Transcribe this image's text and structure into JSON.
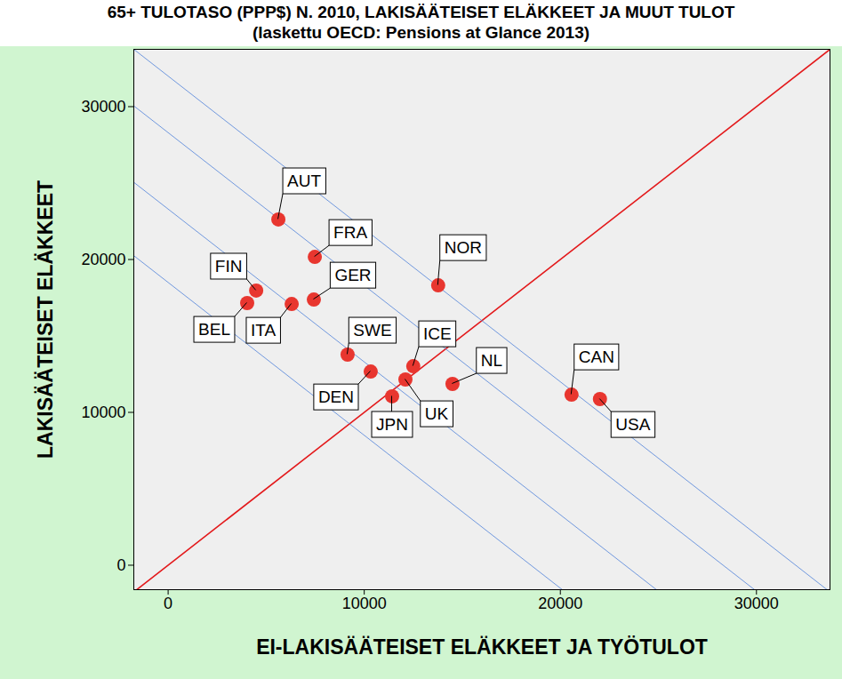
{
  "chart_data": {
    "type": "scatter",
    "title": "65+ TULOTASO (PPP$) N. 2010, LAKISÄÄTEISET ELÄKKEET JA MUUT TULOT",
    "subtitle": "(laskettu OECD: Pensions at Glance 2013)",
    "x_label": "EI-LAKISÄÄTEISET ELÄKKEET JA TYÖTULOT",
    "y_label": "LAKISÄÄTEISET ELÄKKEET",
    "categories": [
      "AUT",
      "FRA",
      "GER",
      "NOR",
      "FIN",
      "BEL",
      "ITA",
      "SWE",
      "DEN",
      "ICE",
      "UK",
      "JPN",
      "NL",
      "CAN",
      "USA"
    ],
    "x": [
      5620,
      7480,
      7430,
      13770,
      4490,
      4030,
      6300,
      9150,
      10330,
      12500,
      12100,
      11420,
      14500,
      20570,
      22020
    ],
    "values": [
      22620,
      20170,
      17380,
      18310,
      17970,
      17150,
      17090,
      13780,
      12670,
      13020,
      12150,
      11050,
      11860,
      11160,
      10870
    ],
    "color": "#e8362f",
    "marker": "circle",
    "xlim": [
      -1750,
      33750
    ],
    "ylim": [
      -1600,
      33750
    ],
    "xticks": [
      0,
      10000,
      20000,
      30000
    ],
    "yticks": [
      0,
      10000,
      20000,
      30000
    ],
    "grid": false,
    "reference_lines": [
      {
        "slope": 1,
        "intercept": 0,
        "color": "#e31a1c"
      },
      {
        "slope": -1,
        "intercept": 18500,
        "color": "#4f81d9"
      },
      {
        "slope": -1,
        "intercept": 23300,
        "color": "#4f81d9"
      },
      {
        "slope": -1,
        "intercept": 28300,
        "color": "#4f81d9"
      },
      {
        "slope": -1,
        "intercept": 32000,
        "color": "#4f81d9"
      }
    ]
  }
}
